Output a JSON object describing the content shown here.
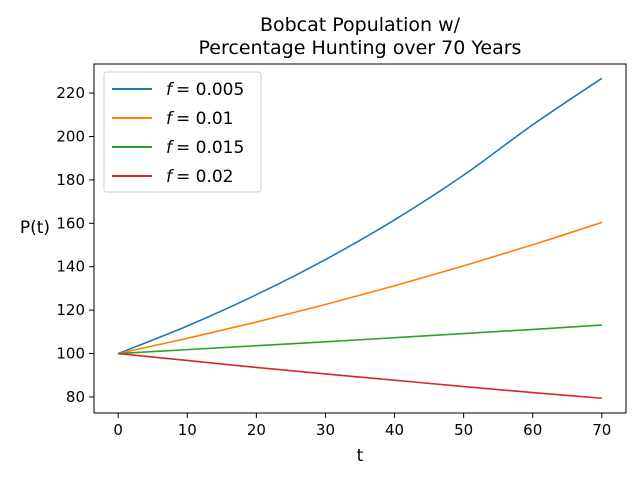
{
  "chart_data": {
    "type": "line",
    "title": [
      "Bobcat Population w/",
      "Percentage Hunting over 70 Years"
    ],
    "xlabel": "t",
    "ylabel": "P(t)",
    "xlim": [
      -3.5,
      73.5
    ],
    "ylim": [
      72.6,
      233.4
    ],
    "xticks": [
      0,
      10,
      20,
      30,
      40,
      50,
      60,
      70
    ],
    "yticks": [
      80,
      100,
      120,
      140,
      160,
      180,
      200,
      220
    ],
    "grid": false,
    "legend_position": "top-left",
    "series": [
      {
        "name_var": "f",
        "name_value": "= 0.005",
        "color": "#1f77b4",
        "x": [
          0,
          10,
          20,
          30,
          40,
          50,
          60,
          70
        ],
        "y": [
          100,
          112.7,
          127.1,
          143.3,
          161.6,
          182.2,
          205.4,
          226.8
        ]
      },
      {
        "name_var": "f",
        "name_value": "= 0.01",
        "color": "#ff7f0e",
        "x": [
          0,
          10,
          20,
          30,
          40,
          50,
          60,
          70
        ],
        "y": [
          100,
          107.0,
          114.5,
          122.6,
          131.2,
          140.4,
          150.1,
          160.4
        ]
      },
      {
        "name_var": "f",
        "name_value": "= 0.015",
        "color": "#2ca02c",
        "x": [
          0,
          10,
          20,
          30,
          40,
          50,
          60,
          70
        ],
        "y": [
          100,
          101.8,
          103.6,
          105.4,
          107.3,
          109.2,
          111.1,
          113.1
        ]
      },
      {
        "name_var": "f",
        "name_value": "= 0.02",
        "color": "#d62728",
        "x": [
          0,
          10,
          20,
          30,
          40,
          50,
          60,
          70
        ],
        "y": [
          100,
          96.8,
          93.6,
          90.6,
          87.7,
          84.8,
          82.0,
          79.4
        ]
      }
    ]
  }
}
